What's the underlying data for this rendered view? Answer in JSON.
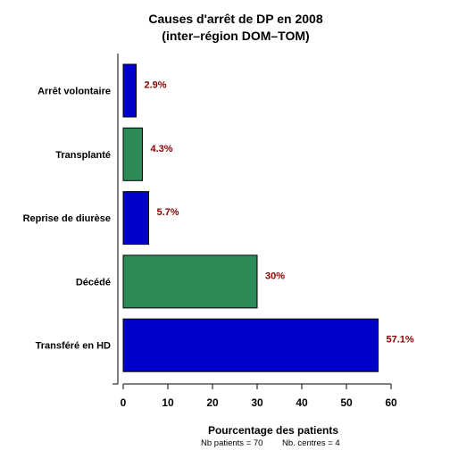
{
  "chart_data": {
    "type": "bar",
    "orientation": "horizontal",
    "title": "Causes d'arrêt de DP en 2008",
    "subtitle": "(inter–région DOM–TOM)",
    "xlabel": "Pourcentage des patients",
    "footer_patients": "Nb patients =  70",
    "footer_centres": "Nb. centres =  4",
    "xlim": [
      0,
      60
    ],
    "xticks": [
      0,
      10,
      20,
      30,
      40,
      50,
      60
    ],
    "categories": [
      "Arrêt volontaire",
      "Transplanté",
      "Reprise de diurèse",
      "Décédé",
      "Transféré en HD"
    ],
    "values": [
      2.9,
      4.3,
      5.7,
      30,
      57.1
    ],
    "data_labels": [
      "2.9%",
      "4.3%",
      "5.7%",
      "30%",
      "57.1%"
    ],
    "bar_colors": [
      "#0000cd",
      "#2e8b57",
      "#0000cd",
      "#2e8b57",
      "#0000cd"
    ],
    "label_color": "#8b0000",
    "grid": false,
    "legend": "none"
  }
}
